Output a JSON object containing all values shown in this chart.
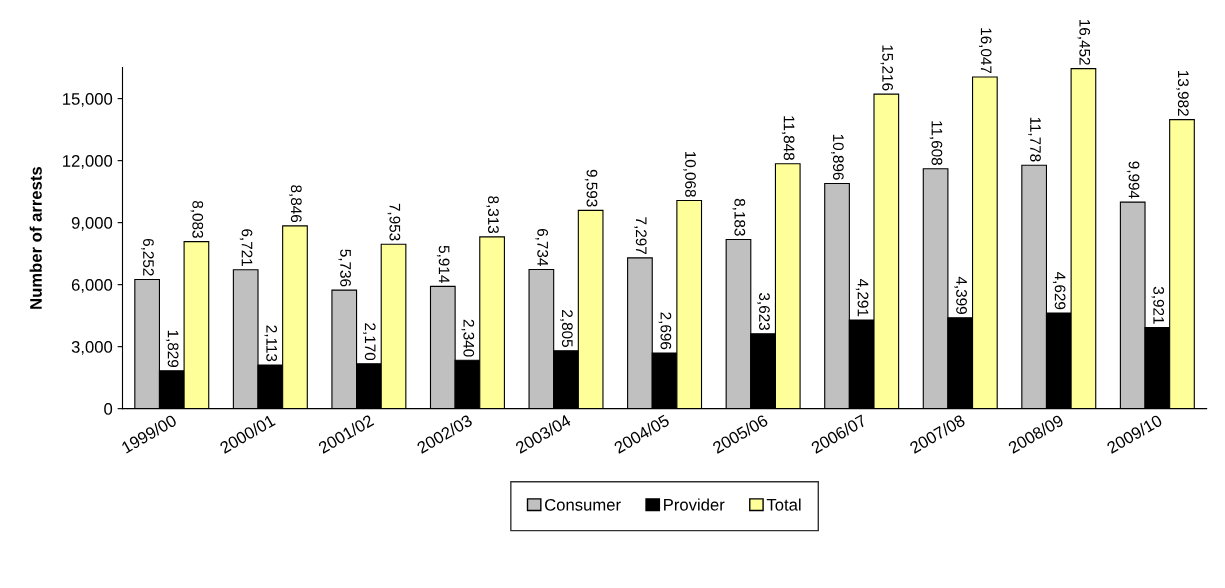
{
  "chart_data": {
    "type": "bar",
    "ylabel": "Number of arrests",
    "categories": [
      "1999/00",
      "2000/01",
      "2001/02",
      "2002/03",
      "2003/04",
      "2004/05",
      "2005/06",
      "2006/07",
      "2007/08",
      "2008/09",
      "2009/10"
    ],
    "series": [
      {
        "name": "Consumer",
        "color": "#c0c0c0",
        "values": [
          6252,
          6721,
          5736,
          5914,
          6734,
          7297,
          8183,
          10896,
          11608,
          11778,
          9994
        ],
        "value_labels": [
          "6,252",
          "6,721",
          "5,736",
          "5,914",
          "6,734",
          "7,297",
          "8,183",
          "10,896",
          "11,608",
          "11,778",
          "9,994"
        ]
      },
      {
        "name": "Provider",
        "color": "#000000",
        "values": [
          1829,
          2113,
          2170,
          2340,
          2805,
          2696,
          3623,
          4291,
          4399,
          4629,
          3921
        ],
        "value_labels": [
          "1,829",
          "2,113",
          "2,170",
          "2,340",
          "2,805",
          "2,696",
          "3,623",
          "4,291",
          "4,399",
          "4,629",
          "3,921"
        ]
      },
      {
        "name": "Total",
        "color": "#ffff99",
        "values": [
          8083,
          8846,
          7953,
          8313,
          9593,
          10068,
          11848,
          15216,
          16047,
          16452,
          13982
        ],
        "value_labels": [
          "8,083",
          "8,846",
          "7,953",
          "8,313",
          "9,593",
          "10,068",
          "11,848",
          "15,216",
          "16,047",
          "16,452",
          "13,982"
        ]
      }
    ],
    "ylim": [
      0,
      16500
    ],
    "yticks": [
      0,
      {
        "value": 3000,
        "label": "3,000"
      },
      {
        "value": 6000,
        "label": "6,000"
      },
      {
        "value": 9000,
        "label": "9,000"
      },
      {
        "value": 12000,
        "label": "12,000"
      },
      {
        "value": 15000,
        "label": "15,000"
      }
    ],
    "grid": false,
    "legend": "bottom"
  }
}
